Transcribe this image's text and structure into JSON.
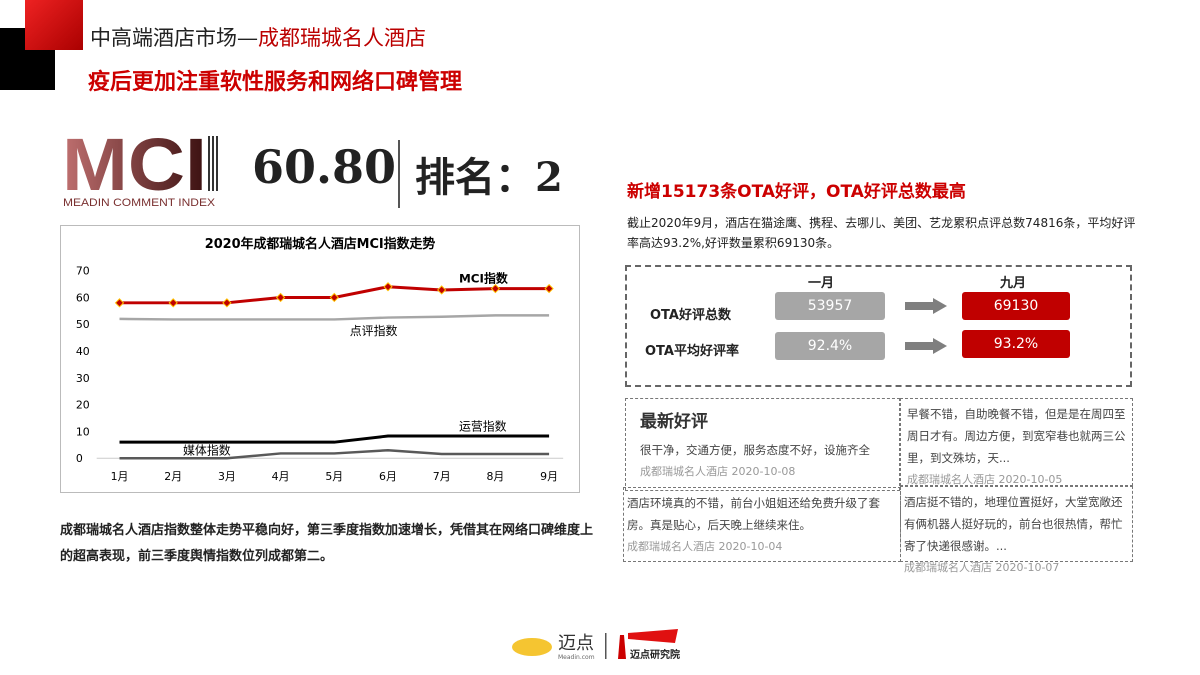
{
  "header": {
    "title_prefix": "中高端酒店市场—",
    "title_hotel": "成都瑞城名人酒店",
    "subtitle": "疫后更加注重软性服务和网络口碑管理"
  },
  "mci": {
    "logo_text": "MCI",
    "logo_sub": "MEADIN COMMENT INDEX",
    "score": "60.80",
    "rank_label": "排名：2"
  },
  "chart_data": {
    "type": "line",
    "title": "2020年成都瑞城名人酒店MCI指数走势",
    "categories": [
      "1月",
      "2月",
      "3月",
      "4月",
      "5月",
      "6月",
      "7月",
      "8月",
      "9月"
    ],
    "ylim": [
      0,
      70
    ],
    "yticks": [
      0,
      10,
      20,
      30,
      40,
      50,
      60,
      70
    ],
    "grid": false,
    "series": [
      {
        "name": "MCI指数",
        "color": "#c00000",
        "markers": true,
        "values": [
          58,
          58,
          58,
          60,
          60,
          64,
          62.8,
          63.3,
          63.3
        ]
      },
      {
        "name": "点评指数",
        "color": "#a6a6a6",
        "values": [
          52,
          51.8,
          51.8,
          51.8,
          51.8,
          52.5,
          52.8,
          53.3,
          53.3
        ]
      },
      {
        "name": "运营指数",
        "color": "#000000",
        "values": [
          6,
          6,
          6,
          6,
          6,
          8.3,
          8.3,
          8.3,
          8.3
        ]
      },
      {
        "name": "媒体指数",
        "color": "#595959",
        "values": [
          0,
          0,
          0,
          1.8,
          1.8,
          3,
          1.6,
          1.6,
          1.6
        ]
      }
    ]
  },
  "summary": "成都瑞城名人酒店指数整体走势平稳向好，第三季度指数加速增长，凭借其在网络口碑维度上的超高表现，前三季度舆情指数位列成都第二。",
  "ota": {
    "headline": "新增15173条OTA好评，OTA好评总数最高",
    "description": "截止2020年9月，酒店在猫途鹰、携程、去哪儿、美团、艺龙累积点评总数74816条，平均好评率高达93.2%,好评数量累积69130条。",
    "col_jan": "一月",
    "col_sep": "九月",
    "rows": [
      {
        "label": "OTA好评总数",
        "jan": "53957",
        "sep": "69130"
      },
      {
        "label": "OTA平均好评率",
        "jan": "92.4%",
        "sep": "93.2%"
      }
    ]
  },
  "reviews": {
    "title": "最新好评",
    "items": [
      {
        "text": "很干净，交通方便，服务态度不好，设施齐全",
        "meta": "成都瑞城名人酒店 2020-10-08"
      },
      {
        "text": "早餐不错，自助晚餐不错，但是是在周四至周日才有。周边方便，到宽窄巷也就两三公里，到文殊坊，天...",
        "meta": "成都瑞城名人酒店 2020-10-05"
      },
      {
        "text": "酒店环境真的不错，前台小姐姐还给免费升级了套房。真是贴心，后天晚上继续来住。",
        "meta": "成都瑞城名人酒店 2020-10-04"
      },
      {
        "text": "酒店挺不错的，地理位置挺好，大堂宽敞还有俩机器人挺好玩的，前台也很热情，帮忙寄了快递很感谢。...",
        "meta": "成都瑞城名人酒店 2020-10-07"
      }
    ]
  },
  "footer": {
    "brand1": "迈点",
    "brand1_sub": "Meadin.com",
    "brand2": "迈点研究院"
  }
}
